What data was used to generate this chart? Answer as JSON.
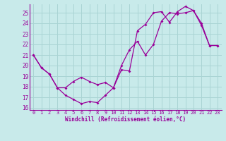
{
  "xlabel": "Windchill (Refroidissement éolien,°C)",
  "bg_color": "#c8eaea",
  "grid_color": "#aad4d4",
  "line_color": "#990099",
  "xlim": [
    -0.5,
    23.5
  ],
  "ylim": [
    15.8,
    25.8
  ],
  "xticks": [
    0,
    1,
    2,
    3,
    4,
    5,
    6,
    7,
    8,
    9,
    10,
    11,
    12,
    13,
    14,
    15,
    16,
    17,
    18,
    19,
    20,
    21,
    22,
    23
  ],
  "yticks": [
    16,
    17,
    18,
    19,
    20,
    21,
    22,
    23,
    24,
    25
  ],
  "line1_x": [
    0,
    1,
    2,
    3,
    4,
    5,
    6,
    7,
    8,
    9,
    10,
    11,
    12,
    13,
    14,
    15,
    16,
    17,
    18,
    19,
    20,
    21,
    22,
    23
  ],
  "line1_y": [
    21.0,
    19.8,
    19.2,
    17.9,
    17.2,
    16.8,
    16.4,
    16.6,
    16.5,
    17.2,
    17.9,
    19.6,
    19.5,
    23.3,
    23.9,
    25.0,
    25.1,
    24.1,
    25.1,
    25.6,
    25.2,
    24.0,
    21.9,
    21.9
  ],
  "line2_x": [
    0,
    1,
    2,
    3,
    4,
    5,
    6,
    7,
    8,
    9,
    10,
    11,
    12,
    13,
    14,
    15,
    16,
    17,
    18,
    19,
    20,
    21,
    22,
    23
  ],
  "line2_y": [
    21.0,
    19.8,
    19.2,
    17.9,
    17.9,
    18.5,
    18.9,
    18.5,
    18.2,
    18.4,
    17.9,
    20.0,
    21.5,
    22.3,
    21.0,
    22.0,
    24.2,
    25.0,
    24.9,
    25.0,
    25.2,
    23.8,
    21.9,
    21.9
  ],
  "xlabel_fontsize": 5.5,
  "xtick_fontsize": 5.0,
  "ytick_fontsize": 5.5
}
